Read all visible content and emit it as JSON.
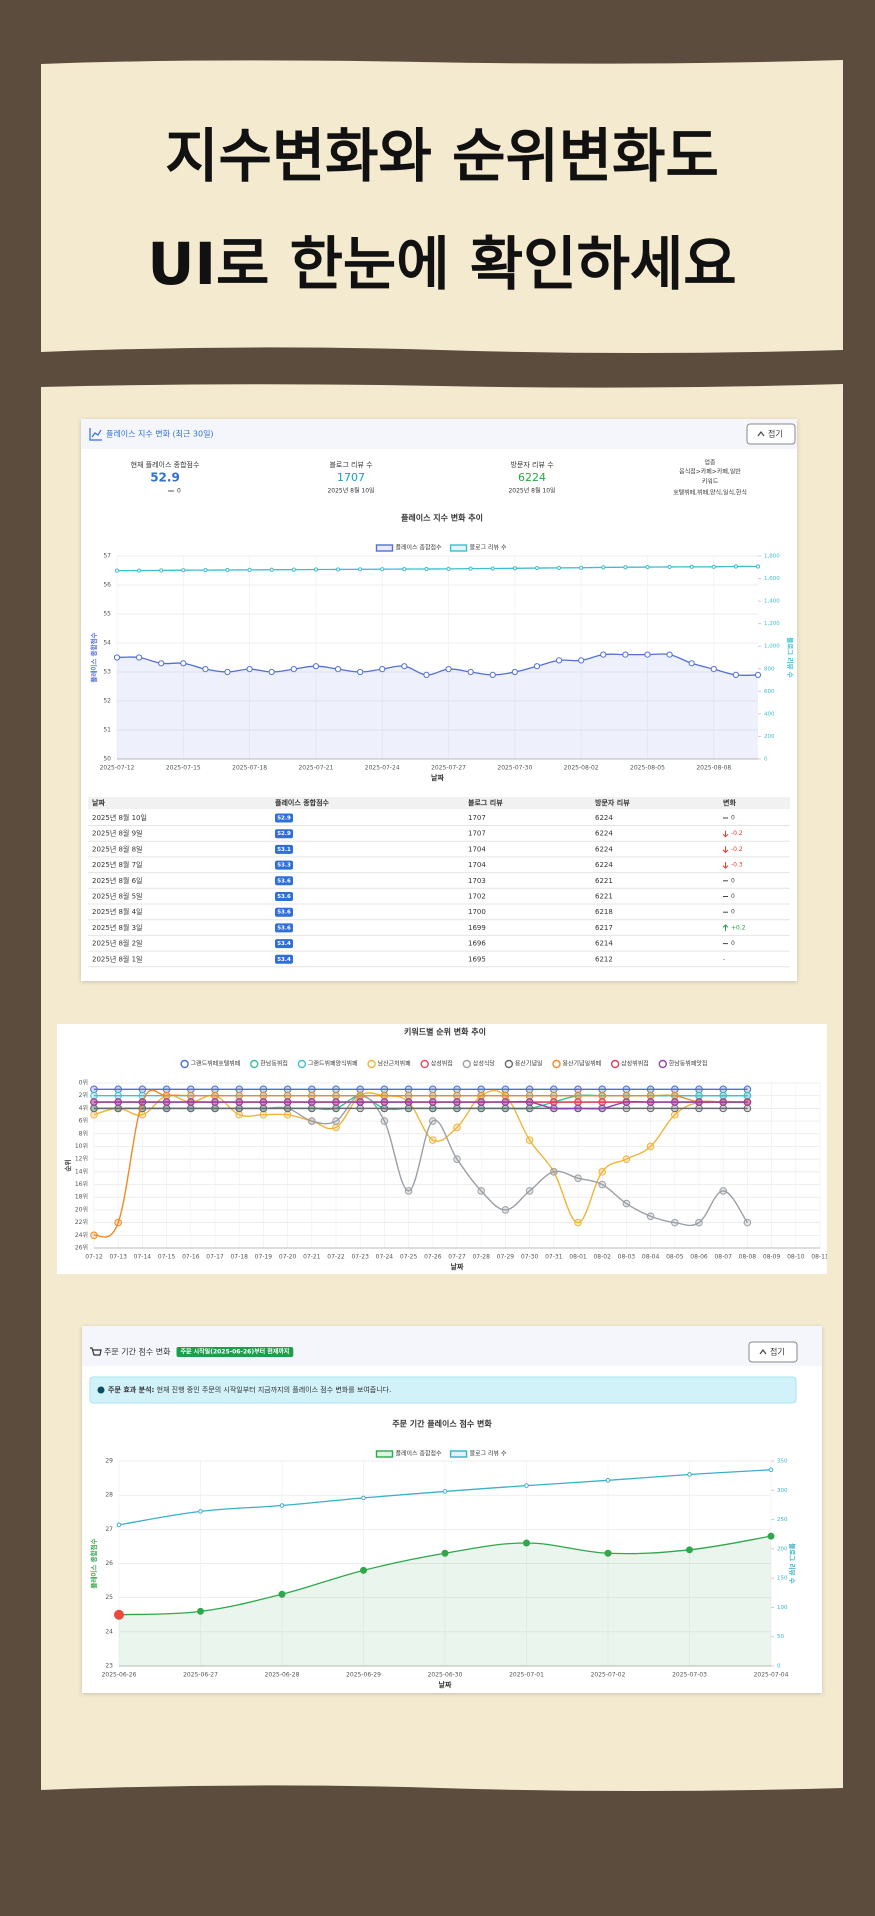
{
  "header": {
    "title_lines": [
      "지수변화와 순위변화도",
      "UI로 한눈에 확인하세요"
    ]
  },
  "index_card": {
    "title": "플레이스 지수 변화 (최근 30일)",
    "toggle": "접기",
    "stats": {
      "score_label": "현재 플레이스 종합점수",
      "score": 52.9,
      "score_change": "0",
      "blog_label": "블로그 리뷰 수",
      "blog": 1707,
      "blog_date": "2025년 8월 10일",
      "visitor_label": "방문자 리뷰 수",
      "visitor": 6224,
      "visitor_date": "2025년 8월 10일",
      "category_label": "업종",
      "category": "음식점>카페>카페,일반",
      "keyword_label": "키워드",
      "keywords": "호텔뷔페,뷔페,양식,일식,한식"
    }
  },
  "index_table": {
    "headers": [
      "날짜",
      "플레이스 종합점수",
      "블로그 리뷰",
      "방문자 리뷰",
      "변화"
    ],
    "rows": [
      [
        "2025년 8월 10일",
        52.9,
        1707,
        6224,
        "0"
      ],
      [
        "2025년 8월 9일",
        52.9,
        1707,
        6224,
        "-0.2"
      ],
      [
        "2025년 8월 8일",
        53.1,
        1704,
        6224,
        "-0.2"
      ],
      [
        "2025년 8월 7일",
        53.3,
        1704,
        6224,
        "-0.3"
      ],
      [
        "2025년 8월 6일",
        53.6,
        1703,
        6221,
        "0"
      ],
      [
        "2025년 8월 5일",
        53.6,
        1702,
        6221,
        "0"
      ],
      [
        "2025년 8월 4일",
        53.6,
        1700,
        6218,
        "0"
      ],
      [
        "2025년 8월 3일",
        53.6,
        1699,
        6217,
        "+0.2"
      ],
      [
        "2025년 8월 2일",
        53.4,
        1696,
        6214,
        "0"
      ],
      [
        "2025년 8월 1일",
        53.4,
        1695,
        6212,
        "-"
      ]
    ],
    "change_directions": [
      "flat",
      "down",
      "down",
      "down",
      "flat",
      "flat",
      "flat",
      "up",
      "flat",
      null
    ]
  },
  "order_card": {
    "title": "주문 기간 점수 변화",
    "badge": "주문 시작일(2025-06-26)부터 현재까지",
    "toggle": "접기",
    "info_label": "주문 효과 분석:",
    "info_text": "현재 진행 중인 주문의 시작일부터 지금까지의 플레이스 점수 변화를 보여줍니다."
  },
  "chart_data": [
    {
      "type": "line",
      "title": "플레이스 지수 변화 추이",
      "legend": "top",
      "grid": true,
      "x_label": "날짜",
      "y_label": "플레이스 종합점수",
      "y2_label": "블로그 리뷰 수",
      "categories": [
        "2025-07-12",
        null,
        null,
        "2025-07-15",
        null,
        null,
        "2025-07-18",
        null,
        null,
        "2025-07-21",
        null,
        null,
        "2025-07-24",
        null,
        null,
        "2025-07-27",
        null,
        null,
        "2025-07-30",
        null,
        null,
        "2025-08-02",
        null,
        null,
        "2025-08-05",
        null,
        null,
        "2025-08-08",
        null,
        null
      ],
      "ylim": [
        50,
        57
      ],
      "yticks": [
        50,
        51,
        52,
        53,
        54,
        55,
        56,
        57
      ],
      "y2lim": [
        0,
        1800
      ],
      "y2ticks": [
        0,
        200,
        400,
        600,
        800,
        {
          "value": 1000,
          "label": "1,000"
        },
        {
          "value": 1200,
          "label": "1,200"
        },
        {
          "value": 1400,
          "label": "1,400"
        },
        {
          "value": 1600,
          "label": "1,600"
        },
        {
          "value": 1800,
          "label": "1,800"
        }
      ],
      "series": [
        {
          "name": "플레이스 종합점수",
          "color": "#5470d4",
          "fill": true,
          "values": [
            53.5,
            53.5,
            53.3,
            53.3,
            53.1,
            53.0,
            53.1,
            53.0,
            53.1,
            53.2,
            53.1,
            53.0,
            53.1,
            53.2,
            52.9,
            53.1,
            53.0,
            52.9,
            53.0,
            53.2,
            53.4,
            53.4,
            53.6,
            53.6,
            53.6,
            53.6,
            53.3,
            53.1,
            52.9,
            52.9
          ]
        },
        {
          "name": "블로그 리뷰 수",
          "color": "#3bbfcf",
          "axis": "y2",
          "values": [
            1670,
            1671,
            1672,
            1674,
            1675,
            1676,
            1677,
            1678,
            1679,
            1680,
            1681,
            1682,
            1683,
            1684,
            1685,
            1686,
            1688,
            1689,
            1691,
            1693,
            1695,
            1696,
            1699,
            1700,
            1702,
            1703,
            1704,
            1704,
            1707,
            1707
          ]
        }
      ]
    },
    {
      "type": "line",
      "title": "키워드별 순위 변화 추이",
      "legend": "top",
      "grid": true,
      "y_reversed": true,
      "x_label": "날짜",
      "y_label": "순위",
      "categories": [
        "07-12",
        "07-13",
        "07-14",
        "07-15",
        "07-16",
        "07-17",
        "07-18",
        "07-19",
        "07-20",
        "07-21",
        "07-22",
        "07-23",
        "07-24",
        "07-25",
        "07-26",
        "07-27",
        "07-28",
        "07-29",
        "07-30",
        "07-31",
        "08-01",
        "08-02",
        "08-03",
        "08-04",
        "08-05",
        "08-06",
        "08-07",
        "08-08",
        "08-09",
        "08-10",
        "08-11"
      ],
      "ylim": [
        0,
        26
      ],
      "yticks": [
        {
          "value": 0,
          "label": "0위"
        },
        {
          "value": 2,
          "label": "2위"
        },
        {
          "value": 4,
          "label": "4위"
        },
        {
          "value": 6,
          "label": "6위"
        },
        {
          "value": 8,
          "label": "8위"
        },
        {
          "value": 10,
          "label": "10위"
        },
        {
          "value": 12,
          "label": "12위"
        },
        {
          "value": 14,
          "label": "14위"
        },
        {
          "value": 16,
          "label": "16위"
        },
        {
          "value": 18,
          "label": "18위"
        },
        {
          "value": 20,
          "label": "20위"
        },
        {
          "value": 22,
          "label": "22위"
        },
        {
          "value": 24,
          "label": "24위"
        },
        {
          "value": 26,
          "label": "26위"
        }
      ],
      "series": [
        {
          "name": "그랜드뷔페호텔뷔페",
          "color": "#4e6fd6",
          "values": [
            1,
            1,
            1,
            1,
            1,
            1,
            1,
            1,
            1,
            1,
            1,
            1,
            1,
            1,
            1,
            1,
            1,
            1,
            1,
            1,
            1,
            1,
            1,
            1,
            1,
            1,
            1,
            1,
            null,
            null,
            null
          ]
        },
        {
          "name": "한남동뷔집",
          "color": "#35c28f",
          "values": [
            4,
            4,
            4,
            4,
            4,
            4,
            4,
            4,
            4,
            4,
            4,
            2,
            4,
            4,
            4,
            4,
            4,
            4,
            4,
            3,
            2,
            2,
            2,
            2,
            2,
            2,
            2,
            2,
            null,
            null,
            null
          ]
        },
        {
          "name": "그랜드뷔페양식뷔페",
          "color": "#3fc1d0",
          "values": [
            2,
            2,
            2,
            2,
            2,
            2,
            2,
            2,
            2,
            2,
            2,
            2,
            2,
            2,
            2,
            2,
            2,
            2,
            2,
            2,
            2,
            2,
            2,
            2,
            2,
            2,
            2,
            2,
            null,
            null,
            null
          ]
        },
        {
          "name": "남산근처뷔페",
          "color": "#f0b43a",
          "values": [
            5,
            4,
            5,
            2,
            3,
            2,
            5,
            5,
            5,
            6,
            7,
            2,
            2,
            3,
            9,
            7,
            2,
            2,
            9,
            14,
            22,
            14,
            12,
            10,
            5,
            3,
            3,
            3,
            null,
            null,
            null
          ]
        },
        {
          "name": "삼성뷔집",
          "color": "#e84a5f",
          "values": [
            3,
            3,
            3,
            3,
            3,
            3,
            3,
            3,
            3,
            3,
            3,
            3,
            3,
            3,
            3,
            3,
            3,
            3,
            3,
            3,
            3,
            3,
            3,
            3,
            3,
            3,
            3,
            3,
            null,
            null,
            null
          ]
        },
        {
          "name": "삼성식당",
          "color": "#9aa0a6",
          "values": [
            4,
            4,
            4,
            4,
            4,
            4,
            4,
            4,
            4,
            6,
            6,
            2,
            6,
            17,
            6,
            12,
            17,
            20,
            17,
            14,
            15,
            16,
            19,
            21,
            22,
            22,
            17,
            22,
            null,
            null,
            null
          ]
        },
        {
          "name": "용산기념일",
          "color": "#666a70",
          "values": [
            4,
            4,
            4,
            4,
            4,
            4,
            4,
            4,
            4,
            4,
            4,
            4,
            4,
            4,
            4,
            4,
            4,
            4,
            4,
            4,
            4,
            4,
            4,
            4,
            4,
            4,
            4,
            4,
            null,
            null,
            null
          ]
        },
        {
          "name": "용산기념일뷔페",
          "color": "#f08a24",
          "values": [
            24,
            22,
            3,
            2,
            2,
            2,
            2,
            2,
            2,
            2,
            2,
            2,
            2,
            2,
            2,
            2,
            2,
            2,
            2,
            2,
            2,
            2,
            2,
            2,
            2,
            3,
            3,
            3,
            null,
            null,
            null
          ]
        },
        {
          "name": "삼성뷔뷔집",
          "color": "#e0405a",
          "values": [
            3,
            3,
            3,
            3,
            3,
            3,
            3,
            3,
            3,
            3,
            3,
            3,
            3,
            3,
            3,
            3,
            3,
            3,
            3,
            3,
            3,
            3,
            3,
            3,
            3,
            3,
            3,
            3,
            null,
            null,
            null
          ]
        },
        {
          "name": "한남동뷔페맛집",
          "color": "#8e44ad",
          "values": [
            3,
            3,
            3,
            3,
            3,
            3,
            3,
            3,
            3,
            3,
            3,
            3,
            3,
            3,
            3,
            3,
            3,
            3,
            3,
            4,
            4,
            4,
            3,
            3,
            3,
            3,
            3,
            3,
            null,
            null,
            null
          ]
        }
      ]
    },
    {
      "type": "line",
      "title": "주문 기간 플레이스 점수 변화",
      "legend": "top",
      "grid": true,
      "start_point_color": "#e74c3c",
      "x_label": "날짜",
      "y_label": "플레이스 종합점수",
      "y2_label": "블로그 리뷰 수",
      "categories": [
        "2025-06-26",
        "2025-06-27",
        "2025-06-28",
        "2025-06-29",
        "2025-06-30",
        "2025-07-01",
        "2025-07-02",
        "2025-07-03",
        "2025-07-04"
      ],
      "ylim": [
        23,
        29
      ],
      "yticks": [
        23,
        24,
        25,
        26,
        27,
        28,
        29
      ],
      "y2lim": [
        0,
        350
      ],
      "y2ticks": [
        0,
        50,
        100,
        150,
        200,
        250,
        300,
        350
      ],
      "series": [
        {
          "name": "플레이스 종합점수",
          "color": "#2ea84a",
          "fill": true,
          "values": [
            24.5,
            24.6,
            25.1,
            25.8,
            26.3,
            26.6,
            26.3,
            26.4,
            26.8
          ]
        },
        {
          "name": "블로그 리뷰 수",
          "color": "#3bb0c9",
          "axis": "y2",
          "values": [
            241,
            264,
            274,
            287,
            298,
            308,
            317,
            327,
            335
          ]
        }
      ]
    }
  ]
}
